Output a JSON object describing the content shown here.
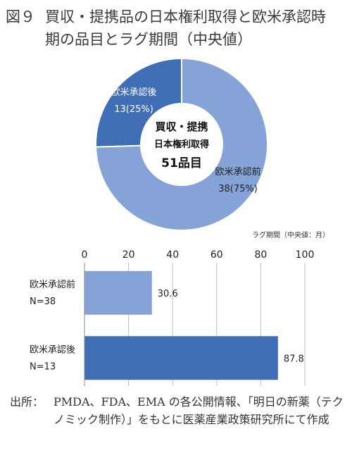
{
  "title": {
    "figure_no": "図９",
    "line1": "買収・提携品の日本権利取得と欧米承認時",
    "line2": "期の品目とラグ期間（中央値）"
  },
  "colors": {
    "dark_blue": "#3F6EB5",
    "light_blue": "#85A3D6",
    "grid": "#bfbfbf"
  },
  "chart_data": [
    {
      "type": "pie",
      "variant": "donut",
      "center_text": [
        "買収・提携",
        "日本権利取得",
        "51品目"
      ],
      "slices": [
        {
          "label": "欧米承認後",
          "value": 13,
          "percent": 25,
          "label_text": "13(25%)",
          "color": "#3F6EB5"
        },
        {
          "label": "欧米承認前",
          "value": 38,
          "percent": 75,
          "label_text": "38(75%)",
          "color": "#85A3D6"
        }
      ]
    },
    {
      "type": "bar",
      "orientation": "horizontal",
      "unit_label": "ラグ期間（中央値：月）",
      "xlim": [
        0,
        100
      ],
      "ticks": [
        "0",
        "20",
        "40",
        "60",
        "80",
        "100"
      ],
      "grid": true,
      "categories": [
        {
          "name": "欧米承認前",
          "n": "N=38"
        },
        {
          "name": "欧米承認後",
          "n": "N=13"
        }
      ],
      "values": [
        30.6,
        87.8
      ],
      "value_labels": [
        "30.6",
        "87.8"
      ],
      "colors": [
        "#85A3D6",
        "#3F6EB5"
      ]
    }
  ],
  "source": {
    "label": "出所：",
    "text": "PMDA、FDA、EMA の各公開情報、「明日の新薬（テクノミック制作）」をもとに医薬産業政策研究所にて作成"
  }
}
